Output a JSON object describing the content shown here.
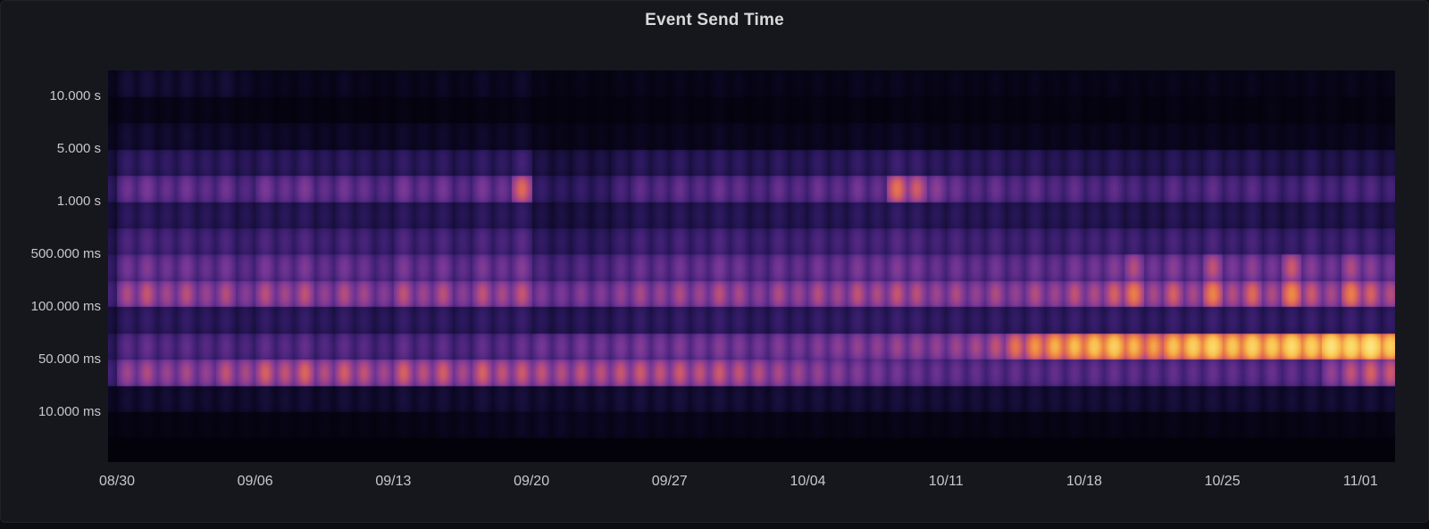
{
  "panel": {
    "title": "Event Send Time",
    "background": "#16171c",
    "page_background": "#0c0d11",
    "border_color": "#202228",
    "plot_background": "#010103",
    "title_color": "#d8d9da",
    "axis_label_color": "#c7c8cc"
  },
  "axes": {
    "y_labels": [
      "10.000 s",
      "5.000 s",
      "1.000 s",
      "500.000 ms",
      "100.000 ms",
      "50.000 ms",
      "10.000 ms"
    ],
    "y_label_boundaries": [
      1,
      3,
      5,
      7,
      9,
      11,
      13
    ],
    "x_labels": [
      "08/30",
      "09/06",
      "09/13",
      "09/20",
      "09/27",
      "10/04",
      "10/11",
      "10/18",
      "10/25",
      "11/01"
    ]
  },
  "chart_data": {
    "type": "heatmap",
    "title": "Event Send Time",
    "x_axis": "time, daily columns from 08/29 to 11/02, weekly tick labels",
    "y_axis": "duration buckets (log scale), 14 rows top-to-bottom from above 10.000 s down to below 10.000 ms",
    "legend": "none",
    "grid": "off",
    "x_tick_labels": [
      "08/30",
      "09/06",
      "09/13",
      "09/20",
      "09/27",
      "10/04",
      "10/11",
      "10/18",
      "10/25",
      "11/01"
    ],
    "y_tick_labels": [
      "10.000 s",
      "5.000 s",
      "1.000 s",
      "500.000 ms",
      "100.000 ms",
      "50.000 ms",
      "10.000 ms"
    ],
    "colormap": [
      [
        0.0,
        "#030109"
      ],
      [
        0.06,
        "#0b0722"
      ],
      [
        0.12,
        "#170f3a"
      ],
      [
        0.2,
        "#261656"
      ],
      [
        0.3,
        "#3c1f70"
      ],
      [
        0.4,
        "#562983"
      ],
      [
        0.5,
        "#743694"
      ],
      [
        0.58,
        "#95418f"
      ],
      [
        0.65,
        "#bc5077"
      ],
      [
        0.72,
        "#e06a56"
      ],
      [
        0.78,
        "#ee8a44"
      ],
      [
        0.85,
        "#f7bb4e"
      ],
      [
        0.92,
        "#fbd968"
      ],
      [
        1.0,
        "#fdf0a0"
      ]
    ],
    "num_rows": 14,
    "num_day_columns": 66,
    "intensity_scale": "0 = empty/black, 1 = max count (pale yellow)",
    "rows": [
      {
        "name": "bucket-row-0",
        "values": [
          0.06,
          0.12,
          0.13,
          0.11,
          0.12,
          0.1,
          0.12,
          0.08,
          0.06,
          0.05,
          0.06,
          0.05,
          0.07,
          0.05,
          0.04,
          0.06,
          0.05,
          0.07,
          0.05,
          0.08,
          0.06,
          0.09,
          0.04,
          0.03,
          0.04,
          0.03,
          0.04,
          0.05,
          0.04,
          0.05,
          0.04,
          0.06,
          0.05,
          0.04,
          0.05,
          0.04,
          0.05,
          0.04,
          0.06,
          0.05,
          0.06,
          0.05,
          0.04,
          0.05,
          0.04,
          0.05,
          0.04,
          0.05,
          0.04,
          0.05,
          0.04,
          0.05,
          0.04,
          0.04,
          0.05,
          0.04,
          0.05,
          0.04,
          0.05,
          0.04,
          0.04,
          0.05,
          0.04,
          0.05,
          0.04,
          0.04
        ]
      },
      {
        "name": "bucket-row-1",
        "values": [
          0.03,
          0.05,
          0.05,
          0.04,
          0.05,
          0.04,
          0.04,
          0.03,
          0.03,
          0.02,
          0.03,
          0.02,
          0.03,
          0.02,
          0.02,
          0.03,
          0.02,
          0.03,
          0.02,
          0.03,
          0.03,
          0.04,
          0.02,
          0.02,
          0.02,
          0.02,
          0.02,
          0.03,
          0.02,
          0.03,
          0.02,
          0.03,
          0.02,
          0.02,
          0.03,
          0.02,
          0.03,
          0.02,
          0.03,
          0.02,
          0.03,
          0.03,
          0.02,
          0.03,
          0.02,
          0.03,
          0.02,
          0.03,
          0.02,
          0.03,
          0.02,
          0.02,
          0.03,
          0.02,
          0.03,
          0.02,
          0.03,
          0.02,
          0.02,
          0.03,
          0.02,
          0.03,
          0.03,
          0.02,
          0.03,
          0.02
        ]
      },
      {
        "name": "bucket-row-2",
        "values": [
          0.06,
          0.11,
          0.12,
          0.1,
          0.11,
          0.09,
          0.1,
          0.08,
          0.09,
          0.08,
          0.09,
          0.07,
          0.09,
          0.08,
          0.07,
          0.09,
          0.08,
          0.09,
          0.07,
          0.09,
          0.08,
          0.1,
          0.05,
          0.04,
          0.05,
          0.04,
          0.05,
          0.06,
          0.05,
          0.06,
          0.05,
          0.07,
          0.06,
          0.05,
          0.06,
          0.05,
          0.06,
          0.05,
          0.07,
          0.06,
          0.08,
          0.07,
          0.05,
          0.06,
          0.05,
          0.06,
          0.05,
          0.06,
          0.05,
          0.06,
          0.05,
          0.06,
          0.05,
          0.05,
          0.06,
          0.05,
          0.06,
          0.05,
          0.06,
          0.05,
          0.05,
          0.06,
          0.05,
          0.06,
          0.06,
          0.05
        ]
      },
      {
        "name": "bucket-row-3",
        "values": [
          0.14,
          0.27,
          0.29,
          0.26,
          0.28,
          0.25,
          0.27,
          0.22,
          0.26,
          0.24,
          0.27,
          0.23,
          0.26,
          0.24,
          0.22,
          0.27,
          0.24,
          0.26,
          0.22,
          0.27,
          0.25,
          0.33,
          0.17,
          0.15,
          0.17,
          0.16,
          0.2,
          0.24,
          0.22,
          0.25,
          0.22,
          0.26,
          0.24,
          0.21,
          0.25,
          0.22,
          0.26,
          0.23,
          0.27,
          0.25,
          0.31,
          0.29,
          0.24,
          0.26,
          0.23,
          0.26,
          0.22,
          0.25,
          0.21,
          0.24,
          0.2,
          0.23,
          0.2,
          0.19,
          0.23,
          0.2,
          0.24,
          0.2,
          0.23,
          0.19,
          0.18,
          0.22,
          0.18,
          0.21,
          0.2,
          0.17
        ]
      },
      {
        "name": "bucket-row-4",
        "values": [
          0.25,
          0.48,
          0.52,
          0.46,
          0.5,
          0.44,
          0.49,
          0.4,
          0.52,
          0.47,
          0.53,
          0.45,
          0.5,
          0.47,
          0.42,
          0.52,
          0.46,
          0.51,
          0.43,
          0.52,
          0.48,
          0.72,
          0.28,
          0.25,
          0.28,
          0.27,
          0.36,
          0.44,
          0.41,
          0.46,
          0.42,
          0.48,
          0.45,
          0.4,
          0.46,
          0.42,
          0.48,
          0.44,
          0.5,
          0.46,
          0.74,
          0.69,
          0.56,
          0.48,
          0.42,
          0.47,
          0.41,
          0.46,
          0.4,
          0.45,
          0.39,
          0.44,
          0.38,
          0.36,
          0.43,
          0.38,
          0.44,
          0.38,
          0.42,
          0.37,
          0.35,
          0.41,
          0.36,
          0.4,
          0.39,
          0.34
        ]
      },
      {
        "name": "bucket-row-5",
        "values": [
          0.13,
          0.24,
          0.26,
          0.23,
          0.25,
          0.22,
          0.24,
          0.2,
          0.24,
          0.22,
          0.25,
          0.21,
          0.24,
          0.22,
          0.2,
          0.25,
          0.22,
          0.24,
          0.2,
          0.25,
          0.23,
          0.27,
          0.16,
          0.15,
          0.16,
          0.16,
          0.19,
          0.22,
          0.2,
          0.23,
          0.21,
          0.24,
          0.22,
          0.19,
          0.23,
          0.2,
          0.24,
          0.21,
          0.25,
          0.23,
          0.27,
          0.25,
          0.22,
          0.24,
          0.21,
          0.24,
          0.2,
          0.23,
          0.2,
          0.23,
          0.2,
          0.22,
          0.19,
          0.18,
          0.22,
          0.19,
          0.23,
          0.19,
          0.22,
          0.18,
          0.18,
          0.21,
          0.18,
          0.21,
          0.2,
          0.17
        ]
      },
      {
        "name": "bucket-row-6",
        "values": [
          0.2,
          0.37,
          0.4,
          0.36,
          0.38,
          0.34,
          0.37,
          0.31,
          0.38,
          0.35,
          0.39,
          0.33,
          0.37,
          0.35,
          0.31,
          0.39,
          0.34,
          0.38,
          0.32,
          0.39,
          0.36,
          0.42,
          0.26,
          0.24,
          0.26,
          0.25,
          0.3,
          0.35,
          0.32,
          0.36,
          0.33,
          0.38,
          0.35,
          0.31,
          0.36,
          0.33,
          0.37,
          0.34,
          0.39,
          0.36,
          0.41,
          0.39,
          0.34,
          0.37,
          0.33,
          0.37,
          0.32,
          0.36,
          0.31,
          0.36,
          0.34,
          0.37,
          0.33,
          0.31,
          0.36,
          0.32,
          0.37,
          0.32,
          0.36,
          0.31,
          0.3,
          0.35,
          0.31,
          0.35,
          0.34,
          0.3
        ]
      },
      {
        "name": "bucket-row-7",
        "values": [
          0.28,
          0.5,
          0.54,
          0.49,
          0.52,
          0.47,
          0.51,
          0.43,
          0.52,
          0.48,
          0.53,
          0.46,
          0.51,
          0.48,
          0.43,
          0.53,
          0.47,
          0.52,
          0.44,
          0.53,
          0.49,
          0.55,
          0.4,
          0.38,
          0.41,
          0.4,
          0.45,
          0.49,
          0.46,
          0.5,
          0.47,
          0.52,
          0.49,
          0.44,
          0.5,
          0.46,
          0.51,
          0.48,
          0.53,
          0.5,
          0.54,
          0.52,
          0.47,
          0.5,
          0.46,
          0.5,
          0.45,
          0.5,
          0.46,
          0.52,
          0.5,
          0.55,
          0.64,
          0.5,
          0.56,
          0.5,
          0.66,
          0.52,
          0.57,
          0.51,
          0.68,
          0.55,
          0.5,
          0.63,
          0.56,
          0.5
        ]
      },
      {
        "name": "bucket-row-8",
        "values": [
          0.35,
          0.63,
          0.67,
          0.61,
          0.65,
          0.59,
          0.64,
          0.55,
          0.65,
          0.61,
          0.66,
          0.58,
          0.64,
          0.61,
          0.55,
          0.66,
          0.6,
          0.65,
          0.56,
          0.66,
          0.62,
          0.67,
          0.54,
          0.52,
          0.55,
          0.54,
          0.58,
          0.62,
          0.59,
          0.63,
          0.6,
          0.65,
          0.62,
          0.56,
          0.63,
          0.59,
          0.64,
          0.61,
          0.66,
          0.63,
          0.67,
          0.65,
          0.6,
          0.63,
          0.58,
          0.63,
          0.58,
          0.64,
          0.6,
          0.66,
          0.63,
          0.7,
          0.76,
          0.62,
          0.7,
          0.62,
          0.77,
          0.64,
          0.72,
          0.63,
          0.78,
          0.68,
          0.62,
          0.76,
          0.7,
          0.64
        ]
      },
      {
        "name": "bucket-row-9",
        "values": [
          0.15,
          0.26,
          0.28,
          0.25,
          0.27,
          0.24,
          0.26,
          0.22,
          0.27,
          0.25,
          0.28,
          0.24,
          0.27,
          0.25,
          0.22,
          0.28,
          0.25,
          0.27,
          0.23,
          0.28,
          0.26,
          0.29,
          0.22,
          0.21,
          0.23,
          0.22,
          0.25,
          0.27,
          0.25,
          0.28,
          0.26,
          0.29,
          0.27,
          0.24,
          0.28,
          0.25,
          0.28,
          0.26,
          0.29,
          0.27,
          0.3,
          0.29,
          0.26,
          0.28,
          0.25,
          0.28,
          0.26,
          0.29,
          0.27,
          0.3,
          0.28,
          0.3,
          0.28,
          0.26,
          0.3,
          0.27,
          0.31,
          0.28,
          0.3,
          0.27,
          0.27,
          0.3,
          0.27,
          0.3,
          0.29,
          0.26
        ]
      },
      {
        "name": "bucket-row-10",
        "values": [
          0.24,
          0.42,
          0.46,
          0.41,
          0.44,
          0.4,
          0.43,
          0.37,
          0.44,
          0.41,
          0.45,
          0.39,
          0.43,
          0.41,
          0.37,
          0.45,
          0.4,
          0.44,
          0.38,
          0.45,
          0.42,
          0.47,
          0.5,
          0.48,
          0.51,
          0.5,
          0.52,
          0.54,
          0.51,
          0.54,
          0.52,
          0.55,
          0.53,
          0.5,
          0.54,
          0.52,
          0.55,
          0.56,
          0.58,
          0.57,
          0.6,
          0.59,
          0.58,
          0.6,
          0.62,
          0.66,
          0.74,
          0.8,
          0.84,
          0.86,
          0.88,
          0.9,
          0.85,
          0.82,
          0.87,
          0.9,
          0.92,
          0.88,
          0.91,
          0.89,
          0.93,
          0.9,
          0.95,
          0.93,
          0.96,
          0.9
        ]
      },
      {
        "name": "bucket-row-11",
        "values": [
          0.34,
          0.6,
          0.63,
          0.59,
          0.62,
          0.58,
          0.66,
          0.62,
          0.7,
          0.66,
          0.71,
          0.64,
          0.69,
          0.66,
          0.61,
          0.7,
          0.65,
          0.69,
          0.62,
          0.7,
          0.66,
          0.68,
          0.66,
          0.64,
          0.66,
          0.65,
          0.67,
          0.68,
          0.66,
          0.68,
          0.66,
          0.68,
          0.66,
          0.64,
          0.62,
          0.6,
          0.58,
          0.56,
          0.54,
          0.52,
          0.5,
          0.48,
          0.47,
          0.46,
          0.45,
          0.44,
          0.45,
          0.44,
          0.45,
          0.44,
          0.45,
          0.46,
          0.44,
          0.43,
          0.45,
          0.44,
          0.46,
          0.45,
          0.44,
          0.46,
          0.45,
          0.44,
          0.58,
          0.66,
          0.7,
          0.68
        ]
      },
      {
        "name": "bucket-row-12",
        "values": [
          0.07,
          0.11,
          0.12,
          0.11,
          0.12,
          0.1,
          0.11,
          0.1,
          0.12,
          0.11,
          0.12,
          0.1,
          0.12,
          0.11,
          0.1,
          0.13,
          0.11,
          0.12,
          0.1,
          0.13,
          0.12,
          0.13,
          0.11,
          0.1,
          0.11,
          0.11,
          0.12,
          0.13,
          0.12,
          0.13,
          0.12,
          0.13,
          0.12,
          0.11,
          0.13,
          0.12,
          0.13,
          0.12,
          0.13,
          0.12,
          0.13,
          0.13,
          0.12,
          0.13,
          0.12,
          0.13,
          0.12,
          0.13,
          0.12,
          0.13,
          0.12,
          0.13,
          0.12,
          0.11,
          0.13,
          0.12,
          0.13,
          0.12,
          0.13,
          0.11,
          0.11,
          0.12,
          0.11,
          0.12,
          0.12,
          0.11
        ]
      },
      {
        "name": "bucket-row-13",
        "values": [
          0.02,
          0.03,
          0.03,
          0.03,
          0.03,
          0.03,
          0.03,
          0.03,
          0.03,
          0.03,
          0.03,
          0.03,
          0.03,
          0.03,
          0.03,
          0.04,
          0.04,
          0.05,
          0.05,
          0.06,
          0.06,
          0.07,
          0.07,
          0.07,
          0.06,
          0.06,
          0.06,
          0.06,
          0.05,
          0.05,
          0.05,
          0.04,
          0.04,
          0.04,
          0.04,
          0.03,
          0.04,
          0.03,
          0.04,
          0.03,
          0.04,
          0.04,
          0.03,
          0.04,
          0.03,
          0.04,
          0.03,
          0.04,
          0.03,
          0.04,
          0.03,
          0.04,
          0.03,
          0.03,
          0.04,
          0.03,
          0.04,
          0.03,
          0.04,
          0.03,
          0.03,
          0.04,
          0.03,
          0.04,
          0.03,
          0.03
        ]
      }
    ]
  }
}
